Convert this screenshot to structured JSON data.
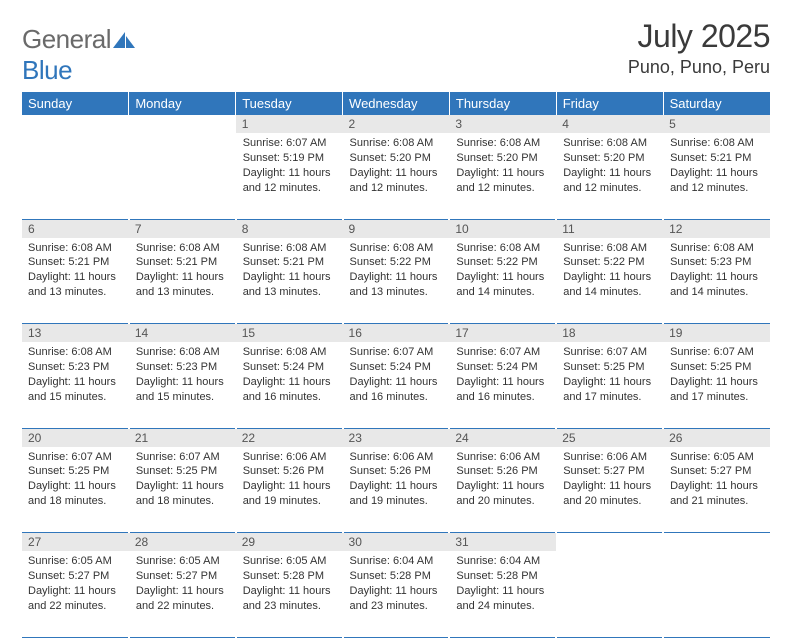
{
  "logo": {
    "part1": "General",
    "part2": "Blue"
  },
  "title": "July 2025",
  "location": "Puno, Puno, Peru",
  "colors": {
    "header_bg": "#3076bb",
    "header_text": "#ffffff",
    "daynum_bg": "#e8e8e8",
    "border": "#3076bb",
    "logo_gray": "#6a6a6a",
    "logo_blue": "#3076bb"
  },
  "day_headers": [
    "Sunday",
    "Monday",
    "Tuesday",
    "Wednesday",
    "Thursday",
    "Friday",
    "Saturday"
  ],
  "weeks": [
    {
      "nums": [
        "",
        "",
        "1",
        "2",
        "3",
        "4",
        "5"
      ],
      "cells": [
        null,
        null,
        {
          "sunrise": "Sunrise: 6:07 AM",
          "sunset": "Sunset: 5:19 PM",
          "daylight": "Daylight: 11 hours and 12 minutes."
        },
        {
          "sunrise": "Sunrise: 6:08 AM",
          "sunset": "Sunset: 5:20 PM",
          "daylight": "Daylight: 11 hours and 12 minutes."
        },
        {
          "sunrise": "Sunrise: 6:08 AM",
          "sunset": "Sunset: 5:20 PM",
          "daylight": "Daylight: 11 hours and 12 minutes."
        },
        {
          "sunrise": "Sunrise: 6:08 AM",
          "sunset": "Sunset: 5:20 PM",
          "daylight": "Daylight: 11 hours and 12 minutes."
        },
        {
          "sunrise": "Sunrise: 6:08 AM",
          "sunset": "Sunset: 5:21 PM",
          "daylight": "Daylight: 11 hours and 12 minutes."
        }
      ]
    },
    {
      "nums": [
        "6",
        "7",
        "8",
        "9",
        "10",
        "11",
        "12"
      ],
      "cells": [
        {
          "sunrise": "Sunrise: 6:08 AM",
          "sunset": "Sunset: 5:21 PM",
          "daylight": "Daylight: 11 hours and 13 minutes."
        },
        {
          "sunrise": "Sunrise: 6:08 AM",
          "sunset": "Sunset: 5:21 PM",
          "daylight": "Daylight: 11 hours and 13 minutes."
        },
        {
          "sunrise": "Sunrise: 6:08 AM",
          "sunset": "Sunset: 5:21 PM",
          "daylight": "Daylight: 11 hours and 13 minutes."
        },
        {
          "sunrise": "Sunrise: 6:08 AM",
          "sunset": "Sunset: 5:22 PM",
          "daylight": "Daylight: 11 hours and 13 minutes."
        },
        {
          "sunrise": "Sunrise: 6:08 AM",
          "sunset": "Sunset: 5:22 PM",
          "daylight": "Daylight: 11 hours and 14 minutes."
        },
        {
          "sunrise": "Sunrise: 6:08 AM",
          "sunset": "Sunset: 5:22 PM",
          "daylight": "Daylight: 11 hours and 14 minutes."
        },
        {
          "sunrise": "Sunrise: 6:08 AM",
          "sunset": "Sunset: 5:23 PM",
          "daylight": "Daylight: 11 hours and 14 minutes."
        }
      ]
    },
    {
      "nums": [
        "13",
        "14",
        "15",
        "16",
        "17",
        "18",
        "19"
      ],
      "cells": [
        {
          "sunrise": "Sunrise: 6:08 AM",
          "sunset": "Sunset: 5:23 PM",
          "daylight": "Daylight: 11 hours and 15 minutes."
        },
        {
          "sunrise": "Sunrise: 6:08 AM",
          "sunset": "Sunset: 5:23 PM",
          "daylight": "Daylight: 11 hours and 15 minutes."
        },
        {
          "sunrise": "Sunrise: 6:08 AM",
          "sunset": "Sunset: 5:24 PM",
          "daylight": "Daylight: 11 hours and 16 minutes."
        },
        {
          "sunrise": "Sunrise: 6:07 AM",
          "sunset": "Sunset: 5:24 PM",
          "daylight": "Daylight: 11 hours and 16 minutes."
        },
        {
          "sunrise": "Sunrise: 6:07 AM",
          "sunset": "Sunset: 5:24 PM",
          "daylight": "Daylight: 11 hours and 16 minutes."
        },
        {
          "sunrise": "Sunrise: 6:07 AM",
          "sunset": "Sunset: 5:25 PM",
          "daylight": "Daylight: 11 hours and 17 minutes."
        },
        {
          "sunrise": "Sunrise: 6:07 AM",
          "sunset": "Sunset: 5:25 PM",
          "daylight": "Daylight: 11 hours and 17 minutes."
        }
      ]
    },
    {
      "nums": [
        "20",
        "21",
        "22",
        "23",
        "24",
        "25",
        "26"
      ],
      "cells": [
        {
          "sunrise": "Sunrise: 6:07 AM",
          "sunset": "Sunset: 5:25 PM",
          "daylight": "Daylight: 11 hours and 18 minutes."
        },
        {
          "sunrise": "Sunrise: 6:07 AM",
          "sunset": "Sunset: 5:25 PM",
          "daylight": "Daylight: 11 hours and 18 minutes."
        },
        {
          "sunrise": "Sunrise: 6:06 AM",
          "sunset": "Sunset: 5:26 PM",
          "daylight": "Daylight: 11 hours and 19 minutes."
        },
        {
          "sunrise": "Sunrise: 6:06 AM",
          "sunset": "Sunset: 5:26 PM",
          "daylight": "Daylight: 11 hours and 19 minutes."
        },
        {
          "sunrise": "Sunrise: 6:06 AM",
          "sunset": "Sunset: 5:26 PM",
          "daylight": "Daylight: 11 hours and 20 minutes."
        },
        {
          "sunrise": "Sunrise: 6:06 AM",
          "sunset": "Sunset: 5:27 PM",
          "daylight": "Daylight: 11 hours and 20 minutes."
        },
        {
          "sunrise": "Sunrise: 6:05 AM",
          "sunset": "Sunset: 5:27 PM",
          "daylight": "Daylight: 11 hours and 21 minutes."
        }
      ]
    },
    {
      "nums": [
        "27",
        "28",
        "29",
        "30",
        "31",
        "",
        ""
      ],
      "cells": [
        {
          "sunrise": "Sunrise: 6:05 AM",
          "sunset": "Sunset: 5:27 PM",
          "daylight": "Daylight: 11 hours and 22 minutes."
        },
        {
          "sunrise": "Sunrise: 6:05 AM",
          "sunset": "Sunset: 5:27 PM",
          "daylight": "Daylight: 11 hours and 22 minutes."
        },
        {
          "sunrise": "Sunrise: 6:05 AM",
          "sunset": "Sunset: 5:28 PM",
          "daylight": "Daylight: 11 hours and 23 minutes."
        },
        {
          "sunrise": "Sunrise: 6:04 AM",
          "sunset": "Sunset: 5:28 PM",
          "daylight": "Daylight: 11 hours and 23 minutes."
        },
        {
          "sunrise": "Sunrise: 6:04 AM",
          "sunset": "Sunset: 5:28 PM",
          "daylight": "Daylight: 11 hours and 24 minutes."
        },
        null,
        null
      ]
    }
  ]
}
